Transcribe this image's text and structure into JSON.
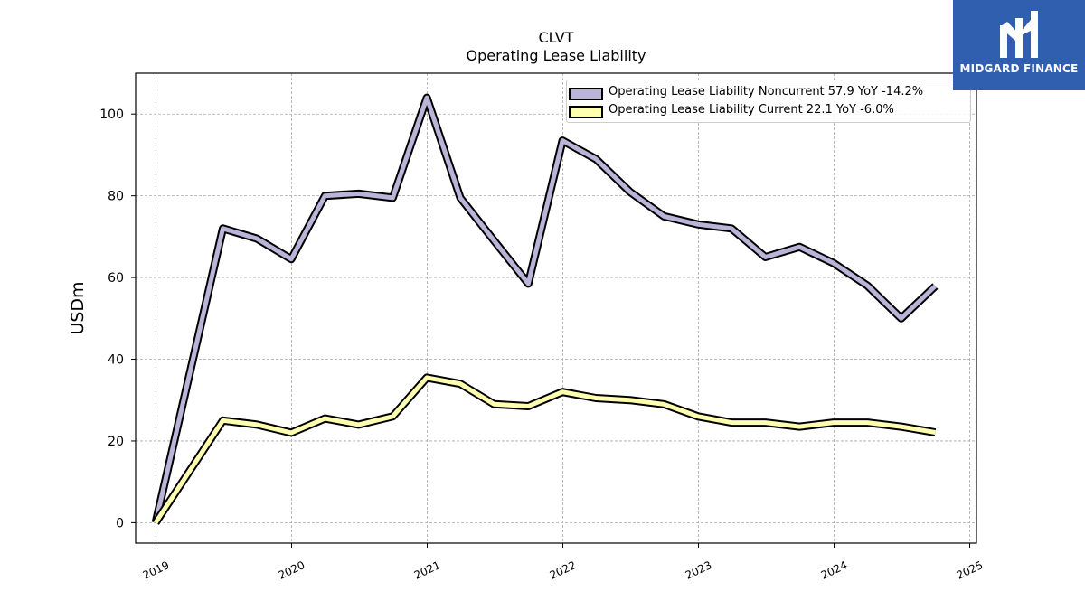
{
  "chart_data": {
    "type": "line",
    "title": "CLVT",
    "subtitle": "Operating Lease Liability",
    "ylabel": "USDm",
    "xlabel": "",
    "xlim": [
      2018.85,
      2025.05
    ],
    "ylim": [
      -5,
      110
    ],
    "yticks": [
      0,
      20,
      40,
      60,
      80,
      100
    ],
    "xticks": [
      "2019",
      "2020",
      "2021",
      "2022",
      "2023",
      "2024",
      "2025"
    ],
    "grid": true,
    "legend_position": "top-right",
    "series": [
      {
        "name": "Operating Lease Liability Noncurrent",
        "legend_label": "Operating Lease Liability Noncurrent  57.9 YoY -14.2%",
        "color": "#b9b4d8",
        "x": [
          "2018-12-31",
          "2019-06-30",
          "2019-09-30",
          "2019-12-31",
          "2020-03-31",
          "2020-06-30",
          "2020-09-30",
          "2020-12-31",
          "2021-03-31",
          "2021-06-30",
          "2021-09-30",
          "2021-12-31",
          "2022-03-31",
          "2022-06-30",
          "2022-09-30",
          "2022-12-31",
          "2023-03-31",
          "2023-06-30",
          "2023-09-30",
          "2023-12-31",
          "2024-03-31",
          "2024-06-30",
          "2024-09-30"
        ],
        "values": [
          0,
          72,
          69.5,
          64.5,
          80,
          80.5,
          79.5,
          104,
          79.5,
          69,
          58.5,
          93.5,
          89,
          81,
          75,
          73,
          72,
          65,
          67.5,
          63.5,
          58,
          50,
          57.9
        ]
      },
      {
        "name": "Operating Lease Liability Current",
        "legend_label": "Operating Lease Liability Current  22.1 YoY -6.0%",
        "color": "#ffffb0",
        "x": [
          "2018-12-31",
          "2019-06-30",
          "2019-09-30",
          "2019-12-31",
          "2020-03-31",
          "2020-06-30",
          "2020-09-30",
          "2020-12-31",
          "2021-03-31",
          "2021-06-30",
          "2021-09-30",
          "2021-12-31",
          "2022-03-31",
          "2022-06-30",
          "2022-09-30",
          "2022-12-31",
          "2023-03-31",
          "2023-06-30",
          "2023-09-30",
          "2023-12-31",
          "2024-03-31",
          "2024-06-30",
          "2024-09-30"
        ],
        "values": [
          0,
          25,
          24,
          22,
          25.5,
          24,
          26,
          35.5,
          34,
          29,
          28.5,
          32,
          30.5,
          30,
          29,
          26,
          24.5,
          24.5,
          23.5,
          24.5,
          24.5,
          23.5,
          22.1
        ]
      }
    ]
  },
  "logo": {
    "text": "MIDGARD FINANCE",
    "background": "#2f5fae"
  }
}
